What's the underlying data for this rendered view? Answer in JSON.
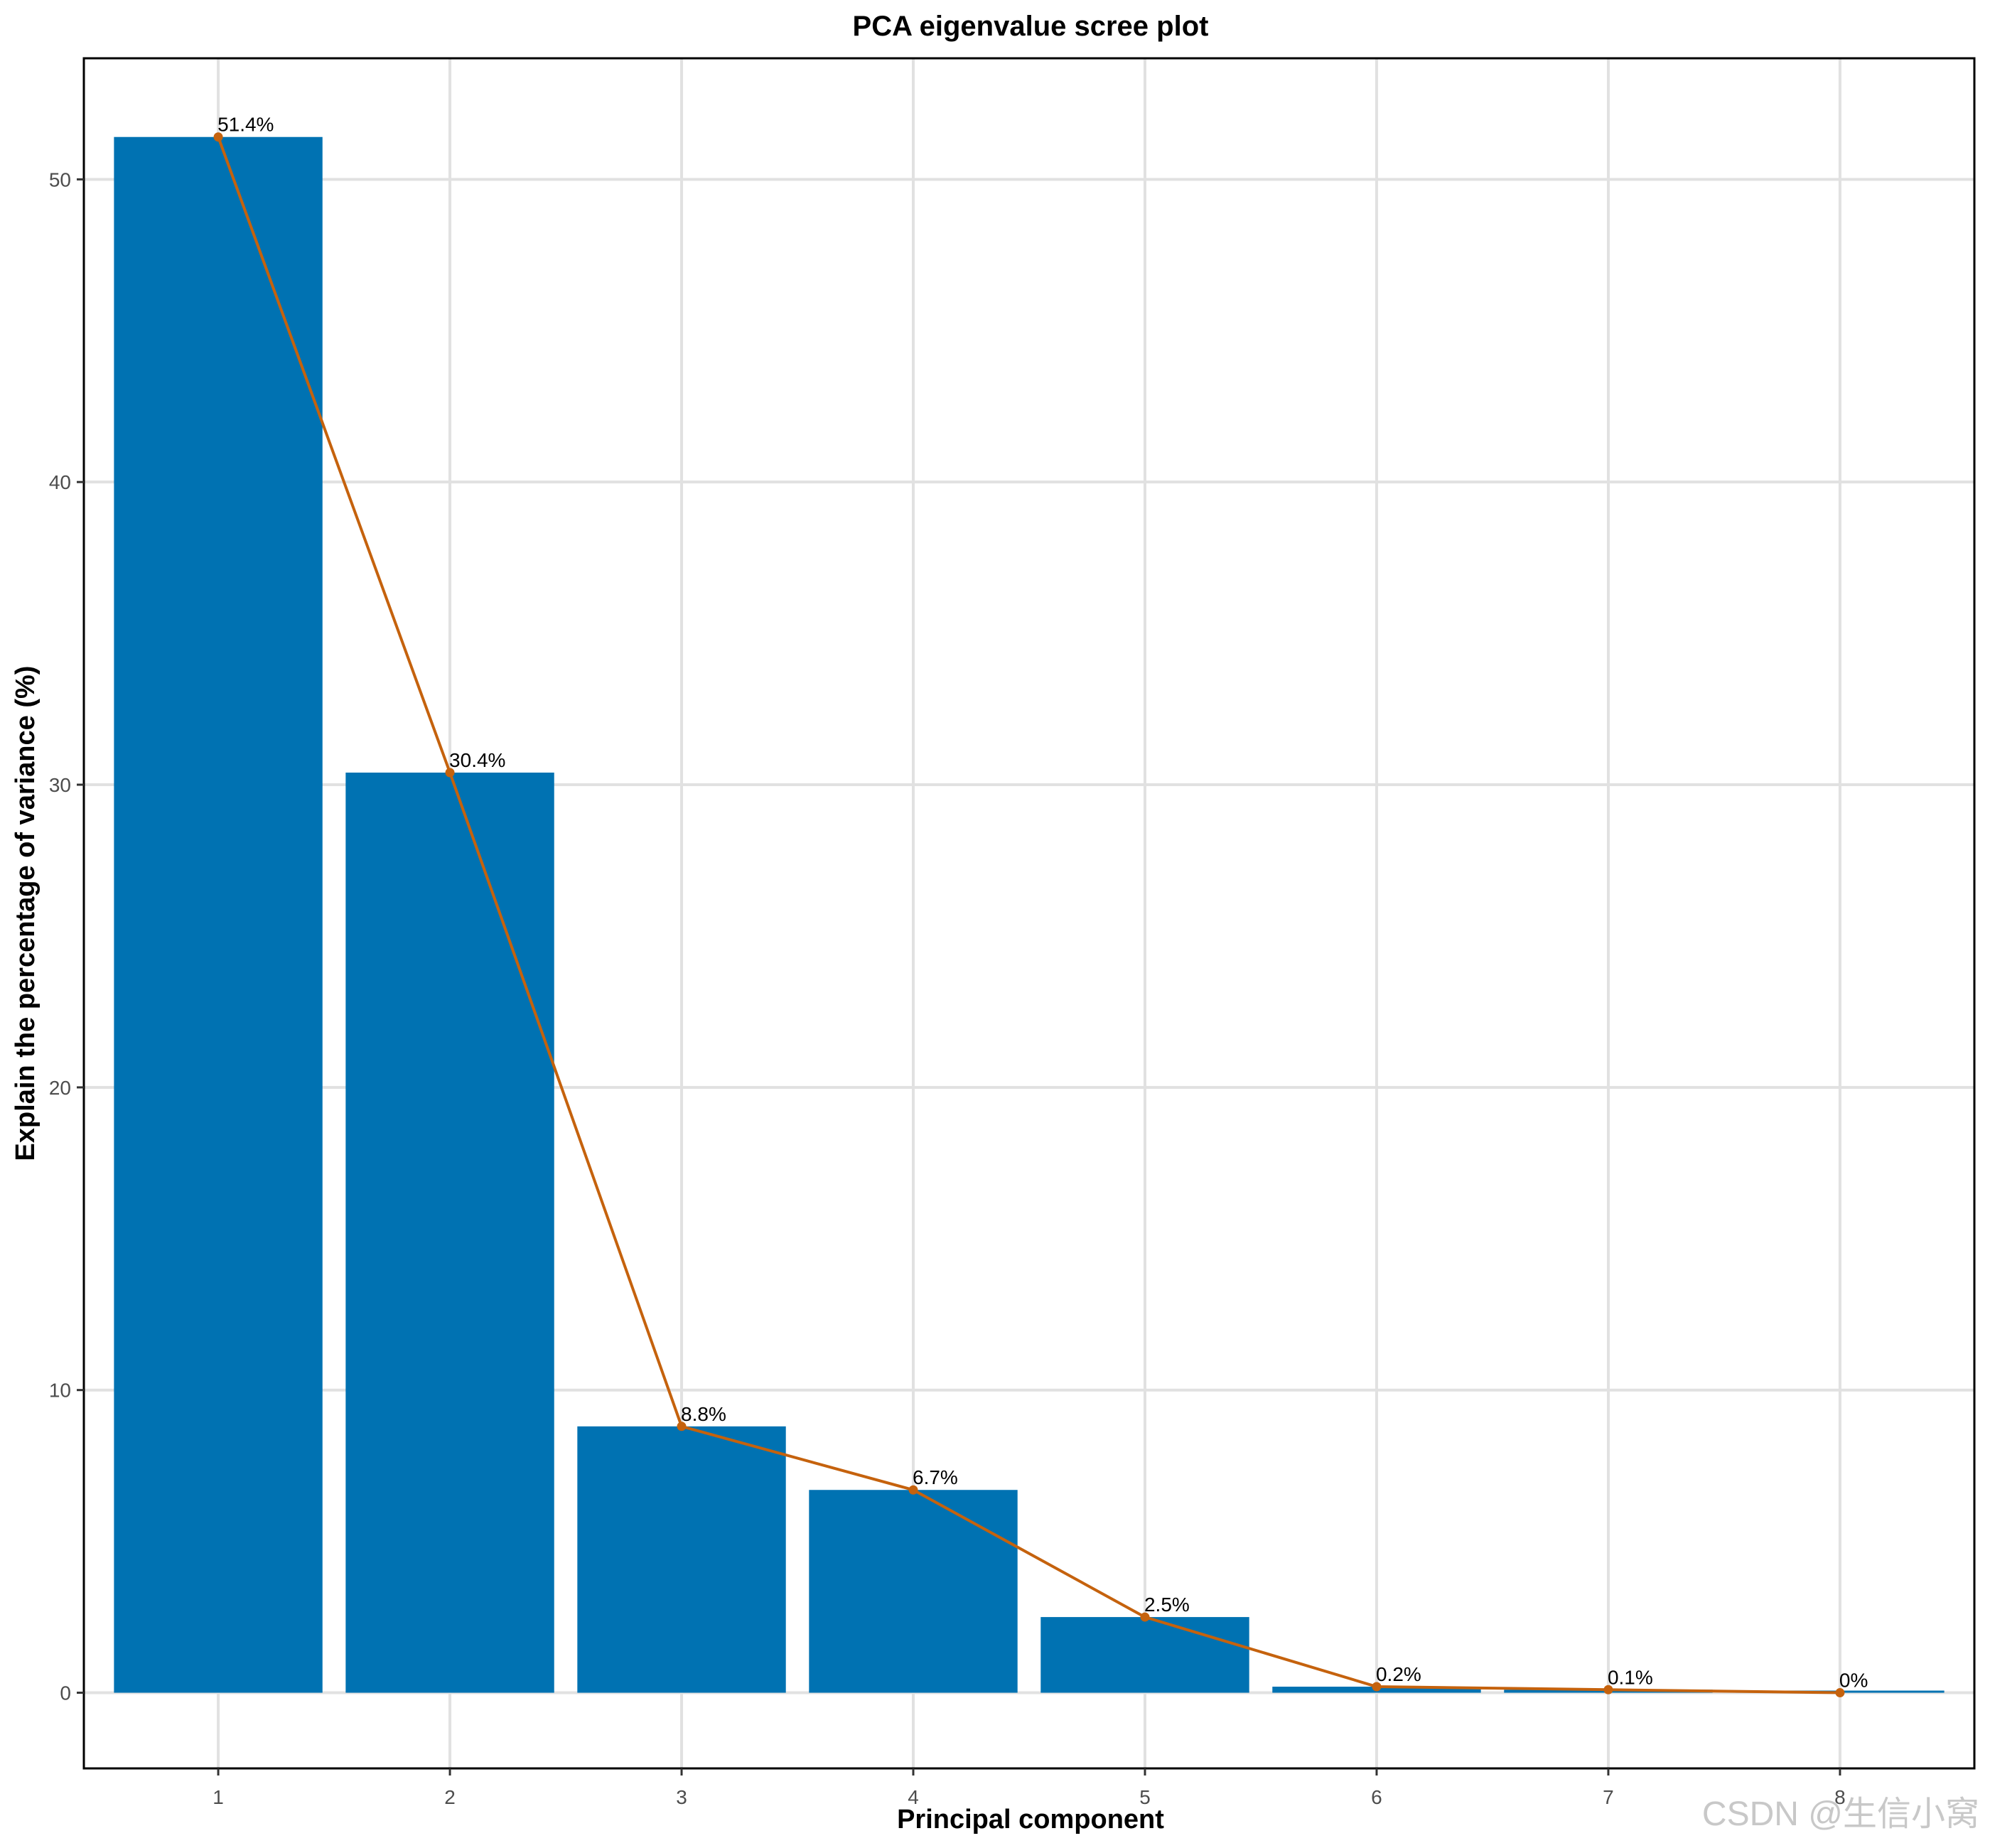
{
  "chart_data": {
    "type": "bar",
    "title": "PCA eigenvalue scree plot",
    "xlabel": "Principal component",
    "ylabel": "Explain the percentage of variance (%)",
    "categories": [
      "1",
      "2",
      "3",
      "4",
      "5",
      "6",
      "7",
      "8"
    ],
    "values": [
      51.4,
      30.4,
      8.8,
      6.7,
      2.5,
      0.2,
      0.1,
      0.0
    ],
    "data_labels": [
      "51.4%",
      "30.4%",
      "8.8%",
      "6.7%",
      "2.5%",
      "0.2%",
      "0.1%",
      "0%"
    ],
    "overlay_line": {
      "type": "line",
      "values": [
        51.4,
        30.4,
        8.8,
        6.7,
        2.5,
        0.2,
        0.1,
        0.0
      ],
      "markers": true
    },
    "yticks": [
      0,
      10,
      20,
      30,
      40,
      50
    ],
    "ylim": [
      -2.5,
      54
    ],
    "xlim": [
      0.42,
      8.58
    ],
    "grid": true,
    "colors": {
      "bar": "#0072B2",
      "line": "#C5620D"
    }
  },
  "watermark": "CSDN @生信小窝"
}
